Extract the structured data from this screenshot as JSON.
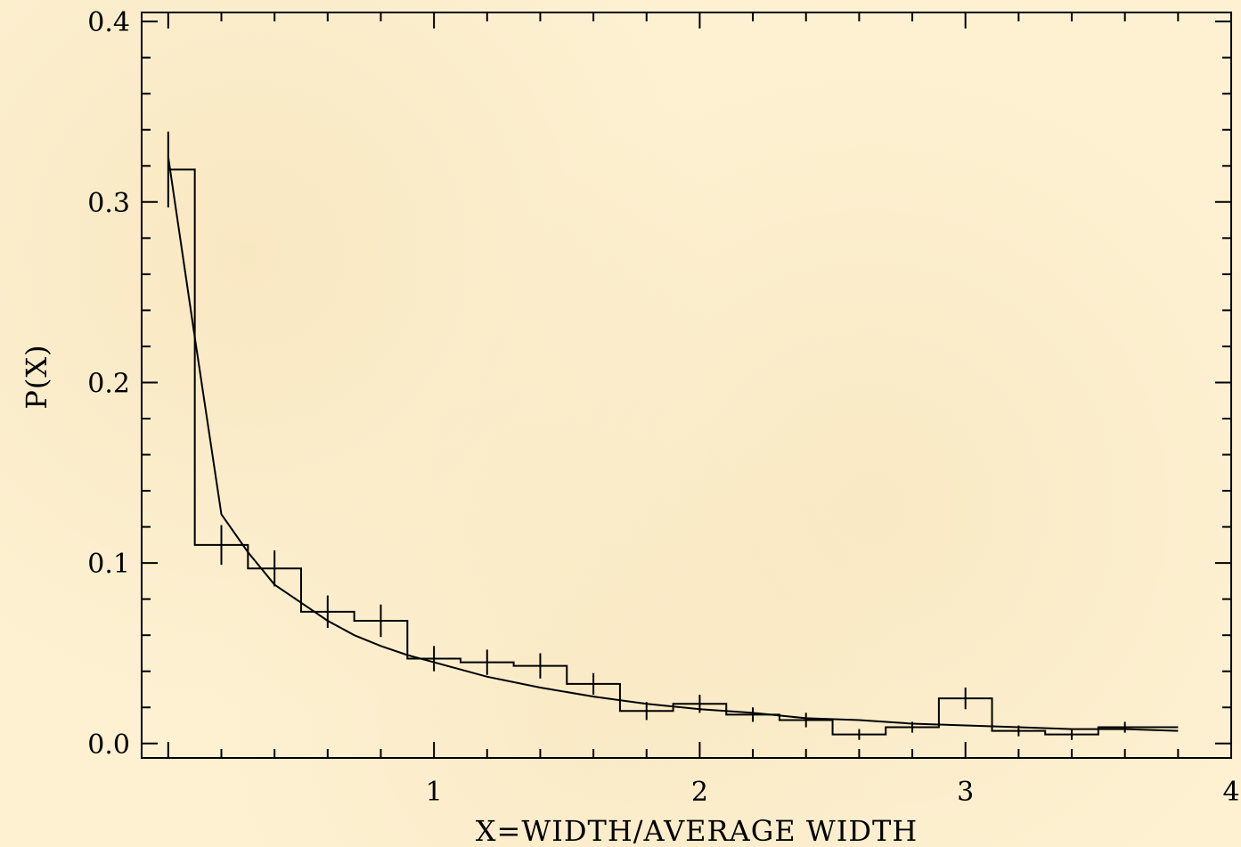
{
  "chart_data": {
    "type": "line",
    "title": "",
    "xlabel": "X=WIDTH/AVERAGE WIDTH",
    "ylabel": "P(X)",
    "xlim": [
      -0.1,
      4
    ],
    "ylim": [
      -0.008,
      0.405
    ],
    "x_ticks": [
      {
        "value": 1,
        "label": "1"
      },
      {
        "value": 2,
        "label": "2"
      },
      {
        "value": 3,
        "label": "3"
      },
      {
        "value": 4,
        "label": "4"
      }
    ],
    "y_ticks": [
      {
        "value": 0.0,
        "label": "0.0"
      },
      {
        "value": 0.1,
        "label": "0.1"
      },
      {
        "value": 0.2,
        "label": "0.2"
      },
      {
        "value": 0.3,
        "label": "0.3"
      },
      {
        "value": 0.4,
        "label": "0.4"
      }
    ],
    "x_minor_step": 0.2,
    "y_minor_step": 0.02,
    "histogram": {
      "bin_edges": [
        0.0,
        0.1,
        0.3,
        0.5,
        0.7,
        0.9,
        1.1,
        1.3,
        1.5,
        1.7,
        1.9,
        2.1,
        2.3,
        2.5,
        2.7,
        2.9,
        3.1,
        3.3,
        3.5,
        3.7,
        3.8
      ],
      "values": [
        0.318,
        0.11,
        0.097,
        0.073,
        0.068,
        0.047,
        0.045,
        0.043,
        0.033,
        0.018,
        0.022,
        0.016,
        0.013,
        0.005,
        0.009,
        0.025,
        0.007,
        0.005,
        0.009,
        0.009
      ]
    },
    "error_bars": [
      {
        "x": 0.0,
        "y": 0.318,
        "err": 0.021
      },
      {
        "x": 0.2,
        "y": 0.11,
        "err": 0.011
      },
      {
        "x": 0.4,
        "y": 0.097,
        "err": 0.01
      },
      {
        "x": 0.6,
        "y": 0.073,
        "err": 0.009
      },
      {
        "x": 0.8,
        "y": 0.068,
        "err": 0.009
      },
      {
        "x": 1.0,
        "y": 0.047,
        "err": 0.007
      },
      {
        "x": 1.2,
        "y": 0.045,
        "err": 0.007
      },
      {
        "x": 1.4,
        "y": 0.043,
        "err": 0.007
      },
      {
        "x": 1.6,
        "y": 0.033,
        "err": 0.006
      },
      {
        "x": 1.8,
        "y": 0.018,
        "err": 0.005
      },
      {
        "x": 2.0,
        "y": 0.022,
        "err": 0.005
      },
      {
        "x": 2.2,
        "y": 0.016,
        "err": 0.004
      },
      {
        "x": 2.4,
        "y": 0.013,
        "err": 0.004
      },
      {
        "x": 2.6,
        "y": 0.005,
        "err": 0.003
      },
      {
        "x": 2.8,
        "y": 0.009,
        "err": 0.003
      },
      {
        "x": 3.0,
        "y": 0.025,
        "err": 0.006
      },
      {
        "x": 3.2,
        "y": 0.007,
        "err": 0.003
      },
      {
        "x": 3.4,
        "y": 0.005,
        "err": 0.003
      },
      {
        "x": 3.6,
        "y": 0.009,
        "err": 0.003
      }
    ],
    "fit_curve": {
      "x": [
        0.0,
        0.1,
        0.2,
        0.3,
        0.4,
        0.5,
        0.6,
        0.7,
        0.8,
        0.9,
        1.0,
        1.1,
        1.2,
        1.4,
        1.6,
        1.8,
        2.0,
        2.2,
        2.4,
        2.6,
        2.8,
        3.0,
        3.2,
        3.4,
        3.6,
        3.8
      ],
      "y": [
        0.325,
        0.225,
        0.127,
        0.106,
        0.088,
        0.078,
        0.068,
        0.06,
        0.054,
        0.049,
        0.045,
        0.041,
        0.037,
        0.031,
        0.026,
        0.022,
        0.019,
        0.017,
        0.014,
        0.013,
        0.011,
        0.01,
        0.009,
        0.008,
        0.008,
        0.007
      ]
    },
    "grid": false,
    "legend": "none",
    "line_color": "#000000"
  }
}
